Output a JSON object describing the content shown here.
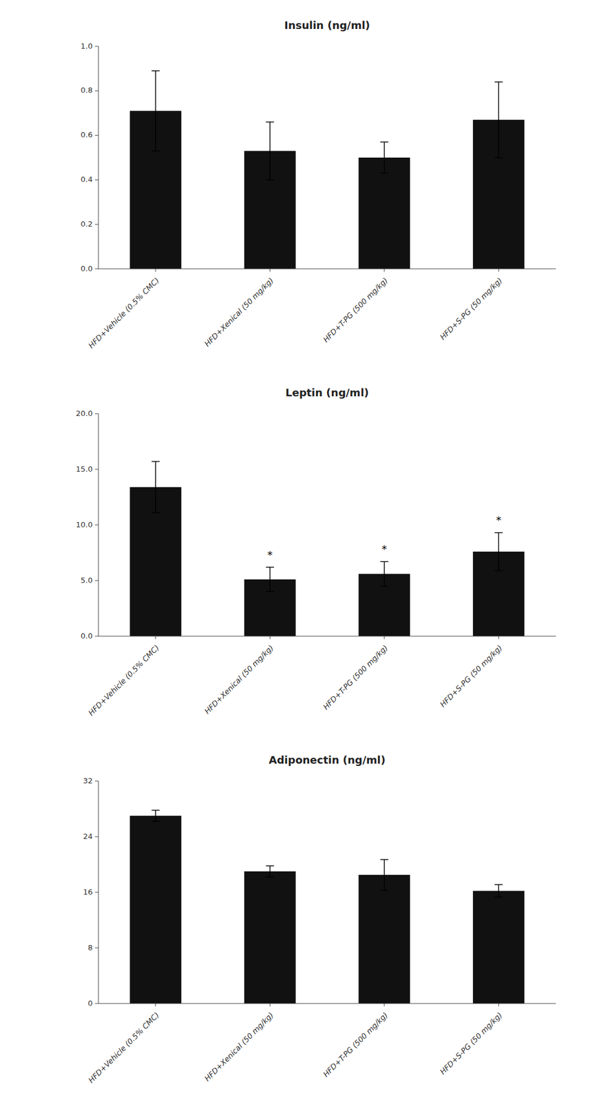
{
  "chart_data": [
    {
      "type": "bar",
      "title": "Insulin (ng/ml)",
      "categories": [
        "HFD+Vehicle (0.5% CMC)",
        "HFD+Xenical (50 mg/kg)",
        "HFD+T-PG (500 mg/kg)",
        "HFD+S-PG (50 mg/kg)"
      ],
      "values": [
        0.71,
        0.53,
        0.5,
        0.67
      ],
      "errors": [
        0.18,
        0.13,
        0.07,
        0.17
      ],
      "color": "#111111",
      "ylim": [
        0.0,
        1.0
      ],
      "yticks": [
        {
          "value": 0.0,
          "label": "0.0"
        },
        0.2,
        0.4,
        0.6,
        0.8,
        {
          "value": 1.0,
          "label": "1.0"
        }
      ]
    },
    {
      "type": "bar",
      "title": "Leptin (ng/ml)",
      "categories": [
        "HFD+Vehicle (0.5% CMC)",
        "HFD+Xenical (50 mg/kg)",
        "HFD+T-PG (500 mg/kg)",
        "HFD+S-PG (50 mg/kg)"
      ],
      "values": [
        13.4,
        5.1,
        5.6,
        7.6
      ],
      "errors": [
        2.3,
        1.1,
        1.1,
        1.7
      ],
      "annotations": [
        null,
        "*",
        "*",
        "*"
      ],
      "color": "#111111",
      "ylim": [
        0.0,
        20.0
      ],
      "yticks": [
        {
          "value": 0.0,
          "label": "0.0"
        },
        {
          "value": 5.0,
          "label": "5.0"
        },
        {
          "value": 10.0,
          "label": "10.0"
        },
        {
          "value": 15.0,
          "label": "15.0"
        },
        {
          "value": 20.0,
          "label": "20.0"
        }
      ]
    },
    {
      "type": "bar",
      "title": "Adiponectin (ng/ml)",
      "categories": [
        "HFD+Vehicle (0.5% CMC)",
        "HFD+Xenical (50 mg/kg)",
        "HFD+T-PG (500 mg/kg)",
        "HFD+S-PG (50 mg/kg)"
      ],
      "values": [
        27.0,
        19.0,
        18.5,
        16.2
      ],
      "errors": [
        0.8,
        0.8,
        2.2,
        0.9
      ],
      "color": "#111111",
      "ylim": [
        0,
        32
      ],
      "yticks": [
        0,
        8,
        16,
        24,
        32
      ]
    }
  ]
}
